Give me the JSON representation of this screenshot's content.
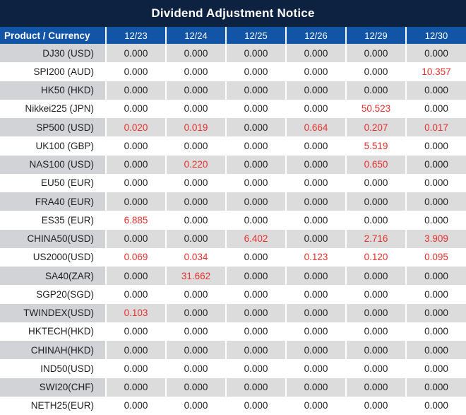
{
  "title": "Dividend Adjustment Notice",
  "colors": {
    "title_bar_bg": "#0d2240",
    "header_bg": "#1254a5",
    "alt_row_bg": "#dcdcdd",
    "alt_product_bg": "#d2d3d7",
    "value_text": "#1f1f1f",
    "highlight_red": "#e5302d"
  },
  "table": {
    "product_header": "Product / Currency",
    "date_headers": [
      "12/23",
      "12/24",
      "12/25",
      "12/26",
      "12/29",
      "12/30"
    ],
    "rows": [
      {
        "product": "DJ30 (USD)",
        "values": [
          "0.000",
          "0.000",
          "0.000",
          "0.000",
          "0.000",
          "0.000"
        ],
        "red": []
      },
      {
        "product": "SPI200 (AUD)",
        "values": [
          "0.000",
          "0.000",
          "0.000",
          "0.000",
          "0.000",
          "10.357"
        ],
        "red": [
          5
        ]
      },
      {
        "product": "HK50 (HKD)",
        "values": [
          "0.000",
          "0.000",
          "0.000",
          "0.000",
          "0.000",
          "0.000"
        ],
        "red": []
      },
      {
        "product": "Nikkei225 (JPN)",
        "values": [
          "0.000",
          "0.000",
          "0.000",
          "0.000",
          "50.523",
          "0.000"
        ],
        "red": [
          4
        ]
      },
      {
        "product": "SP500 (USD)",
        "values": [
          "0.020",
          "0.019",
          "0.000",
          "0.664",
          "0.207",
          "0.017"
        ],
        "red": [
          0,
          1,
          3,
          4,
          5
        ]
      },
      {
        "product": "UK100 (GBP)",
        "values": [
          "0.000",
          "0.000",
          "0.000",
          "0.000",
          "5.519",
          "0.000"
        ],
        "red": [
          4
        ]
      },
      {
        "product": "NAS100 (USD)",
        "values": [
          "0.000",
          "0.220",
          "0.000",
          "0.000",
          "0.650",
          "0.000"
        ],
        "red": [
          1,
          4
        ]
      },
      {
        "product": "EU50 (EUR)",
        "values": [
          "0.000",
          "0.000",
          "0.000",
          "0.000",
          "0.000",
          "0.000"
        ],
        "red": []
      },
      {
        "product": "FRA40 (EUR)",
        "values": [
          "0.000",
          "0.000",
          "0.000",
          "0.000",
          "0.000",
          "0.000"
        ],
        "red": []
      },
      {
        "product": "ES35 (EUR)",
        "values": [
          "6.885",
          "0.000",
          "0.000",
          "0.000",
          "0.000",
          "0.000"
        ],
        "red": [
          0
        ]
      },
      {
        "product": "CHINA50(USD)",
        "values": [
          "0.000",
          "0.000",
          "6.402",
          "0.000",
          "2.716",
          "3.909"
        ],
        "red": [
          2,
          4,
          5
        ]
      },
      {
        "product": "US2000(USD)",
        "values": [
          "0.069",
          "0.034",
          "0.000",
          "0.123",
          "0.120",
          "0.095"
        ],
        "red": [
          0,
          1,
          3,
          4,
          5
        ]
      },
      {
        "product": "SA40(ZAR)",
        "values": [
          "0.000",
          "31.662",
          "0.000",
          "0.000",
          "0.000",
          "0.000"
        ],
        "red": [
          1
        ]
      },
      {
        "product": "SGP20(SGD)",
        "values": [
          "0.000",
          "0.000",
          "0.000",
          "0.000",
          "0.000",
          "0.000"
        ],
        "red": []
      },
      {
        "product": "TWINDEX(USD)",
        "values": [
          "0.103",
          "0.000",
          "0.000",
          "0.000",
          "0.000",
          "0.000"
        ],
        "red": [
          0
        ]
      },
      {
        "product": "HKTECH(HKD)",
        "values": [
          "0.000",
          "0.000",
          "0.000",
          "0.000",
          "0.000",
          "0.000"
        ],
        "red": []
      },
      {
        "product": "CHINAH(HKD)",
        "values": [
          "0.000",
          "0.000",
          "0.000",
          "0.000",
          "0.000",
          "0.000"
        ],
        "red": []
      },
      {
        "product": "IND50(USD)",
        "values": [
          "0.000",
          "0.000",
          "0.000",
          "0.000",
          "0.000",
          "0.000"
        ],
        "red": []
      },
      {
        "product": "SWI20(CHF)",
        "values": [
          "0.000",
          "0.000",
          "0.000",
          "0.000",
          "0.000",
          "0.000"
        ],
        "red": []
      },
      {
        "product": "NETH25(EUR)",
        "values": [
          "0.000",
          "0.000",
          "0.000",
          "0.000",
          "0.000",
          "0.000"
        ],
        "red": []
      }
    ]
  }
}
